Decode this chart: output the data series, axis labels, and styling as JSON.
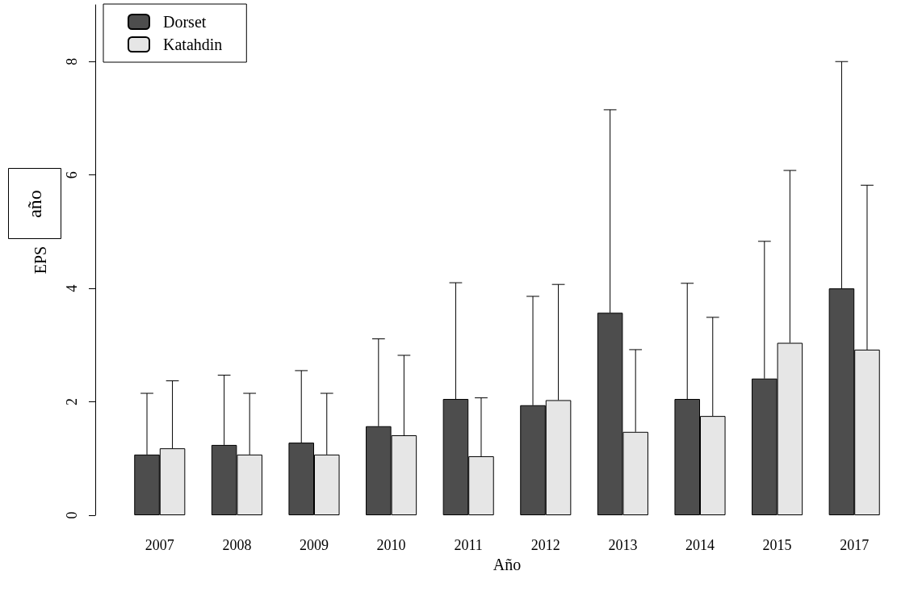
{
  "chart_data": {
    "type": "bar",
    "xlabel": "Año",
    "ylabel": "EPS",
    "annotations": [
      "año"
    ],
    "categories": [
      "2007",
      "2008",
      "2009",
      "2010",
      "2011",
      "2012",
      "2013",
      "2014",
      "2015",
      "2017"
    ],
    "series": [
      {
        "name": "Dorset",
        "color": "#4d4d4d",
        "values": [
          1.07,
          1.24,
          1.28,
          1.57,
          2.05,
          1.94,
          3.57,
          2.05,
          2.41,
          4.0
        ],
        "errors": [
          [
            1.07,
            2.15
          ],
          [
            1.24,
            2.47
          ],
          [
            1.28,
            2.55
          ],
          [
            1.57,
            3.11
          ],
          [
            2.05,
            4.1
          ],
          [
            1.94,
            3.86
          ],
          [
            3.57,
            7.15
          ],
          [
            2.05,
            4.09
          ],
          [
            2.41,
            4.83
          ],
          [
            4.0,
            8.0
          ]
        ]
      },
      {
        "name": "Katahdin",
        "color": "#e6e6e6",
        "values": [
          1.18,
          1.07,
          1.07,
          1.41,
          1.04,
          2.03,
          1.47,
          1.75,
          3.04,
          2.92
        ],
        "errors": [
          [
            1.18,
            2.37
          ],
          [
            1.07,
            2.15
          ],
          [
            1.07,
            2.15
          ],
          [
            1.41,
            2.82
          ],
          [
            1.04,
            2.07
          ],
          [
            2.03,
            4.07
          ],
          [
            1.47,
            2.92
          ],
          [
            1.75,
            3.49
          ],
          [
            3.04,
            6.08
          ],
          [
            2.92,
            5.82
          ]
        ]
      }
    ],
    "ylim": [
      0,
      9
    ],
    "yticks": [
      0,
      2,
      4,
      6,
      8
    ],
    "grid": false,
    "legend": "top left"
  }
}
